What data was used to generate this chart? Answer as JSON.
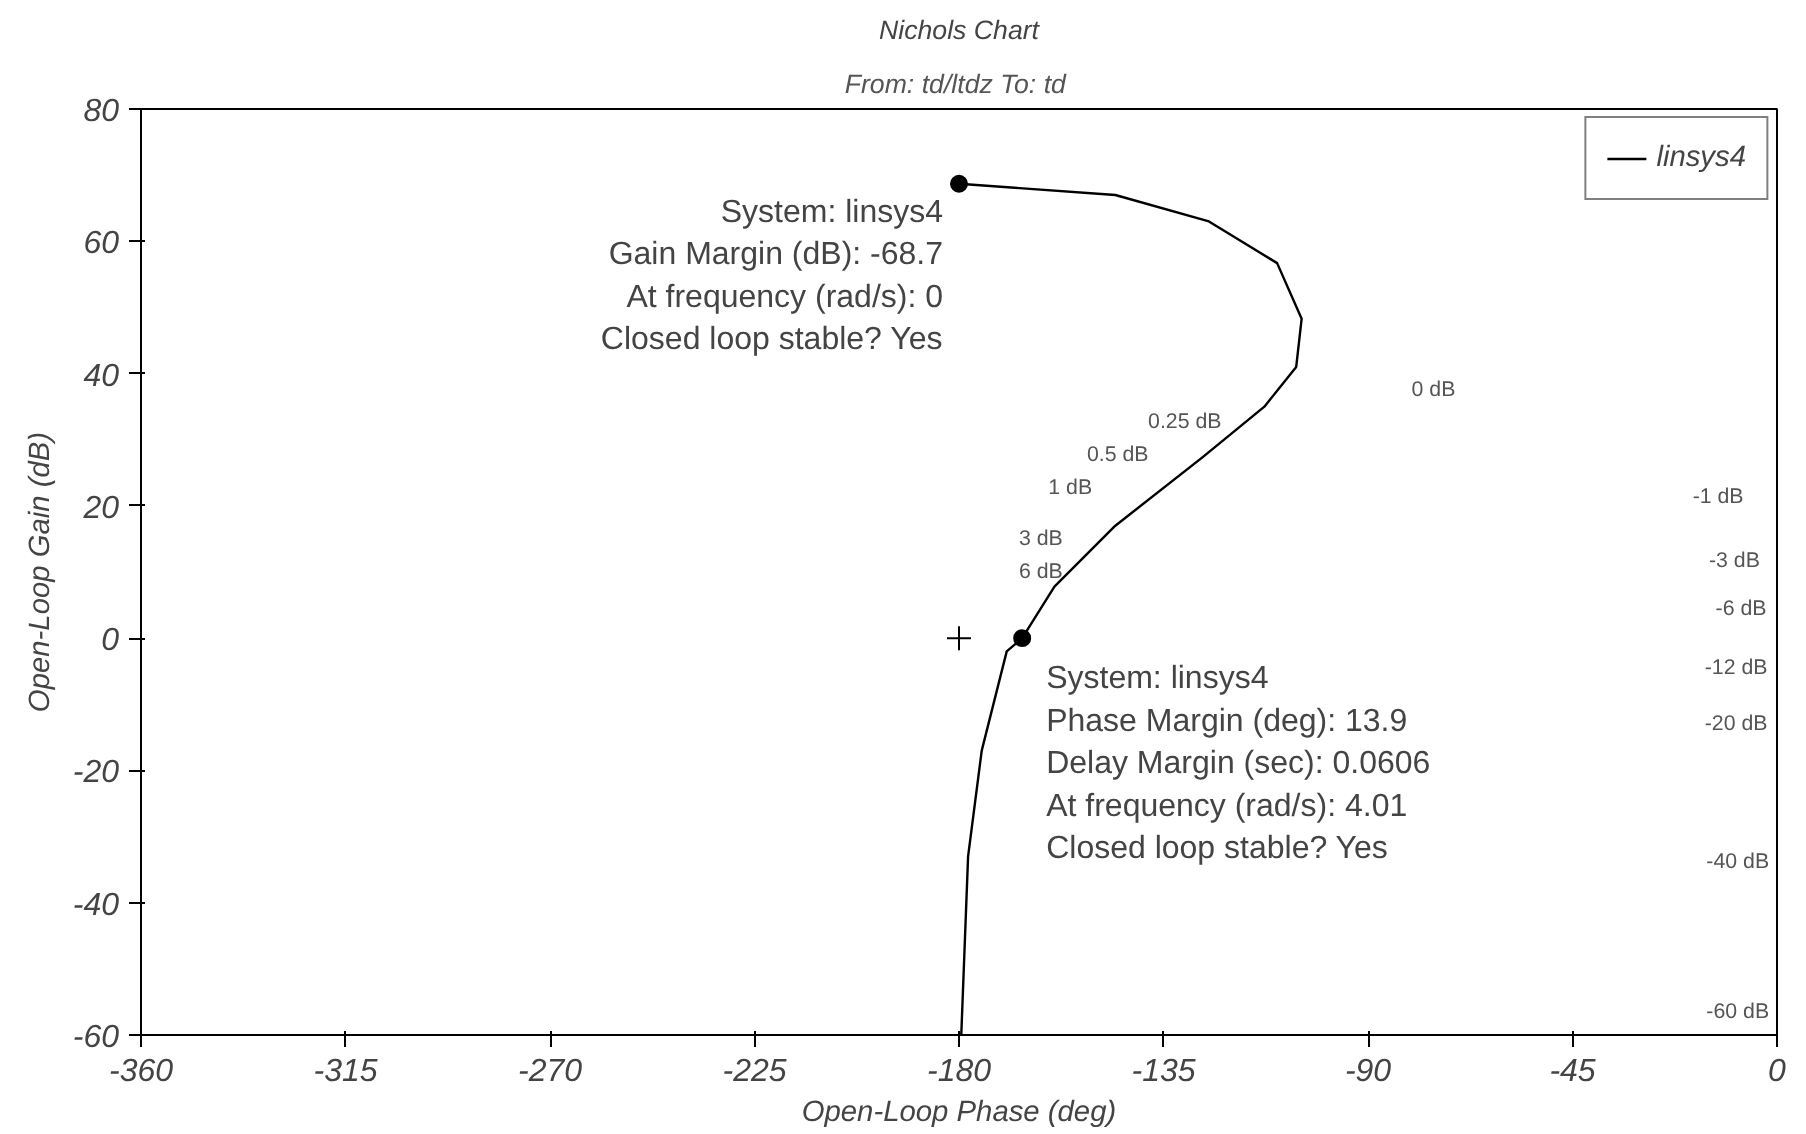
{
  "chart_data": {
    "type": "line",
    "title": "Nichols Chart",
    "subtitle": "From: td/ltdz  To: td",
    "xlabel": "Open-Loop Phase (deg)",
    "ylabel": "Open-Loop Gain (dB)",
    "xlim": [
      -360,
      0
    ],
    "ylim": [
      -60,
      80
    ],
    "xticks": [
      -360,
      -315,
      -270,
      -225,
      -180,
      -135,
      -90,
      -45,
      0
    ],
    "yticks": [
      -60,
      -40,
      -20,
      0,
      20,
      40,
      60,
      80
    ],
    "legend": "top right",
    "line_style": "solid",
    "series": [
      {
        "name": "linsys4",
        "color": "#000000",
        "x": [
          -180,
          -145.6,
          -125,
          -110,
          -104.6,
          -105.8,
          -112.8,
          -126.3,
          -145.6,
          -159,
          -166.1,
          -169.5,
          -175,
          -178,
          -179.5
        ],
        "values": [
          68.7,
          67,
          63,
          56.7,
          48.3,
          41,
          35,
          27.4,
          17,
          7.8,
          0,
          -2,
          -17,
          -33,
          -60
        ]
      },
      {
        "type": "scatter",
        "marker": "circle",
        "color": "#000000",
        "x": [
          -180,
          -166.1
        ],
        "values": [
          68.7,
          0
        ]
      },
      {
        "type": "scatter",
        "marker": "cross",
        "color": "#000000",
        "x": [
          -180
        ],
        "values": [
          0
        ]
      }
    ],
    "annotations": [
      {
        "text": "System: linsys4\nGain Margin (dB): -68.7\nAt frequency (rad/s): 0\nClosed loop stable? Yes",
        "x": -180,
        "y": 68.7
      },
      {
        "text": "System: linsys4\nPhase Margin (deg): 13.9\nDelay Margin (sec): 0.0606\nAt frequency (rad/s): 4.01\nClosed loop stable? Yes",
        "x": -166.1,
        "y": 0
      },
      "0 dB",
      "0.25 dB",
      "0.5 dB",
      "1 dB",
      "3 dB",
      "6 dB",
      "-1 dB",
      "-3 dB",
      "-6 dB",
      "-12 dB",
      "-20 dB",
      "-40 dB",
      "-60 dB"
    ]
  }
}
